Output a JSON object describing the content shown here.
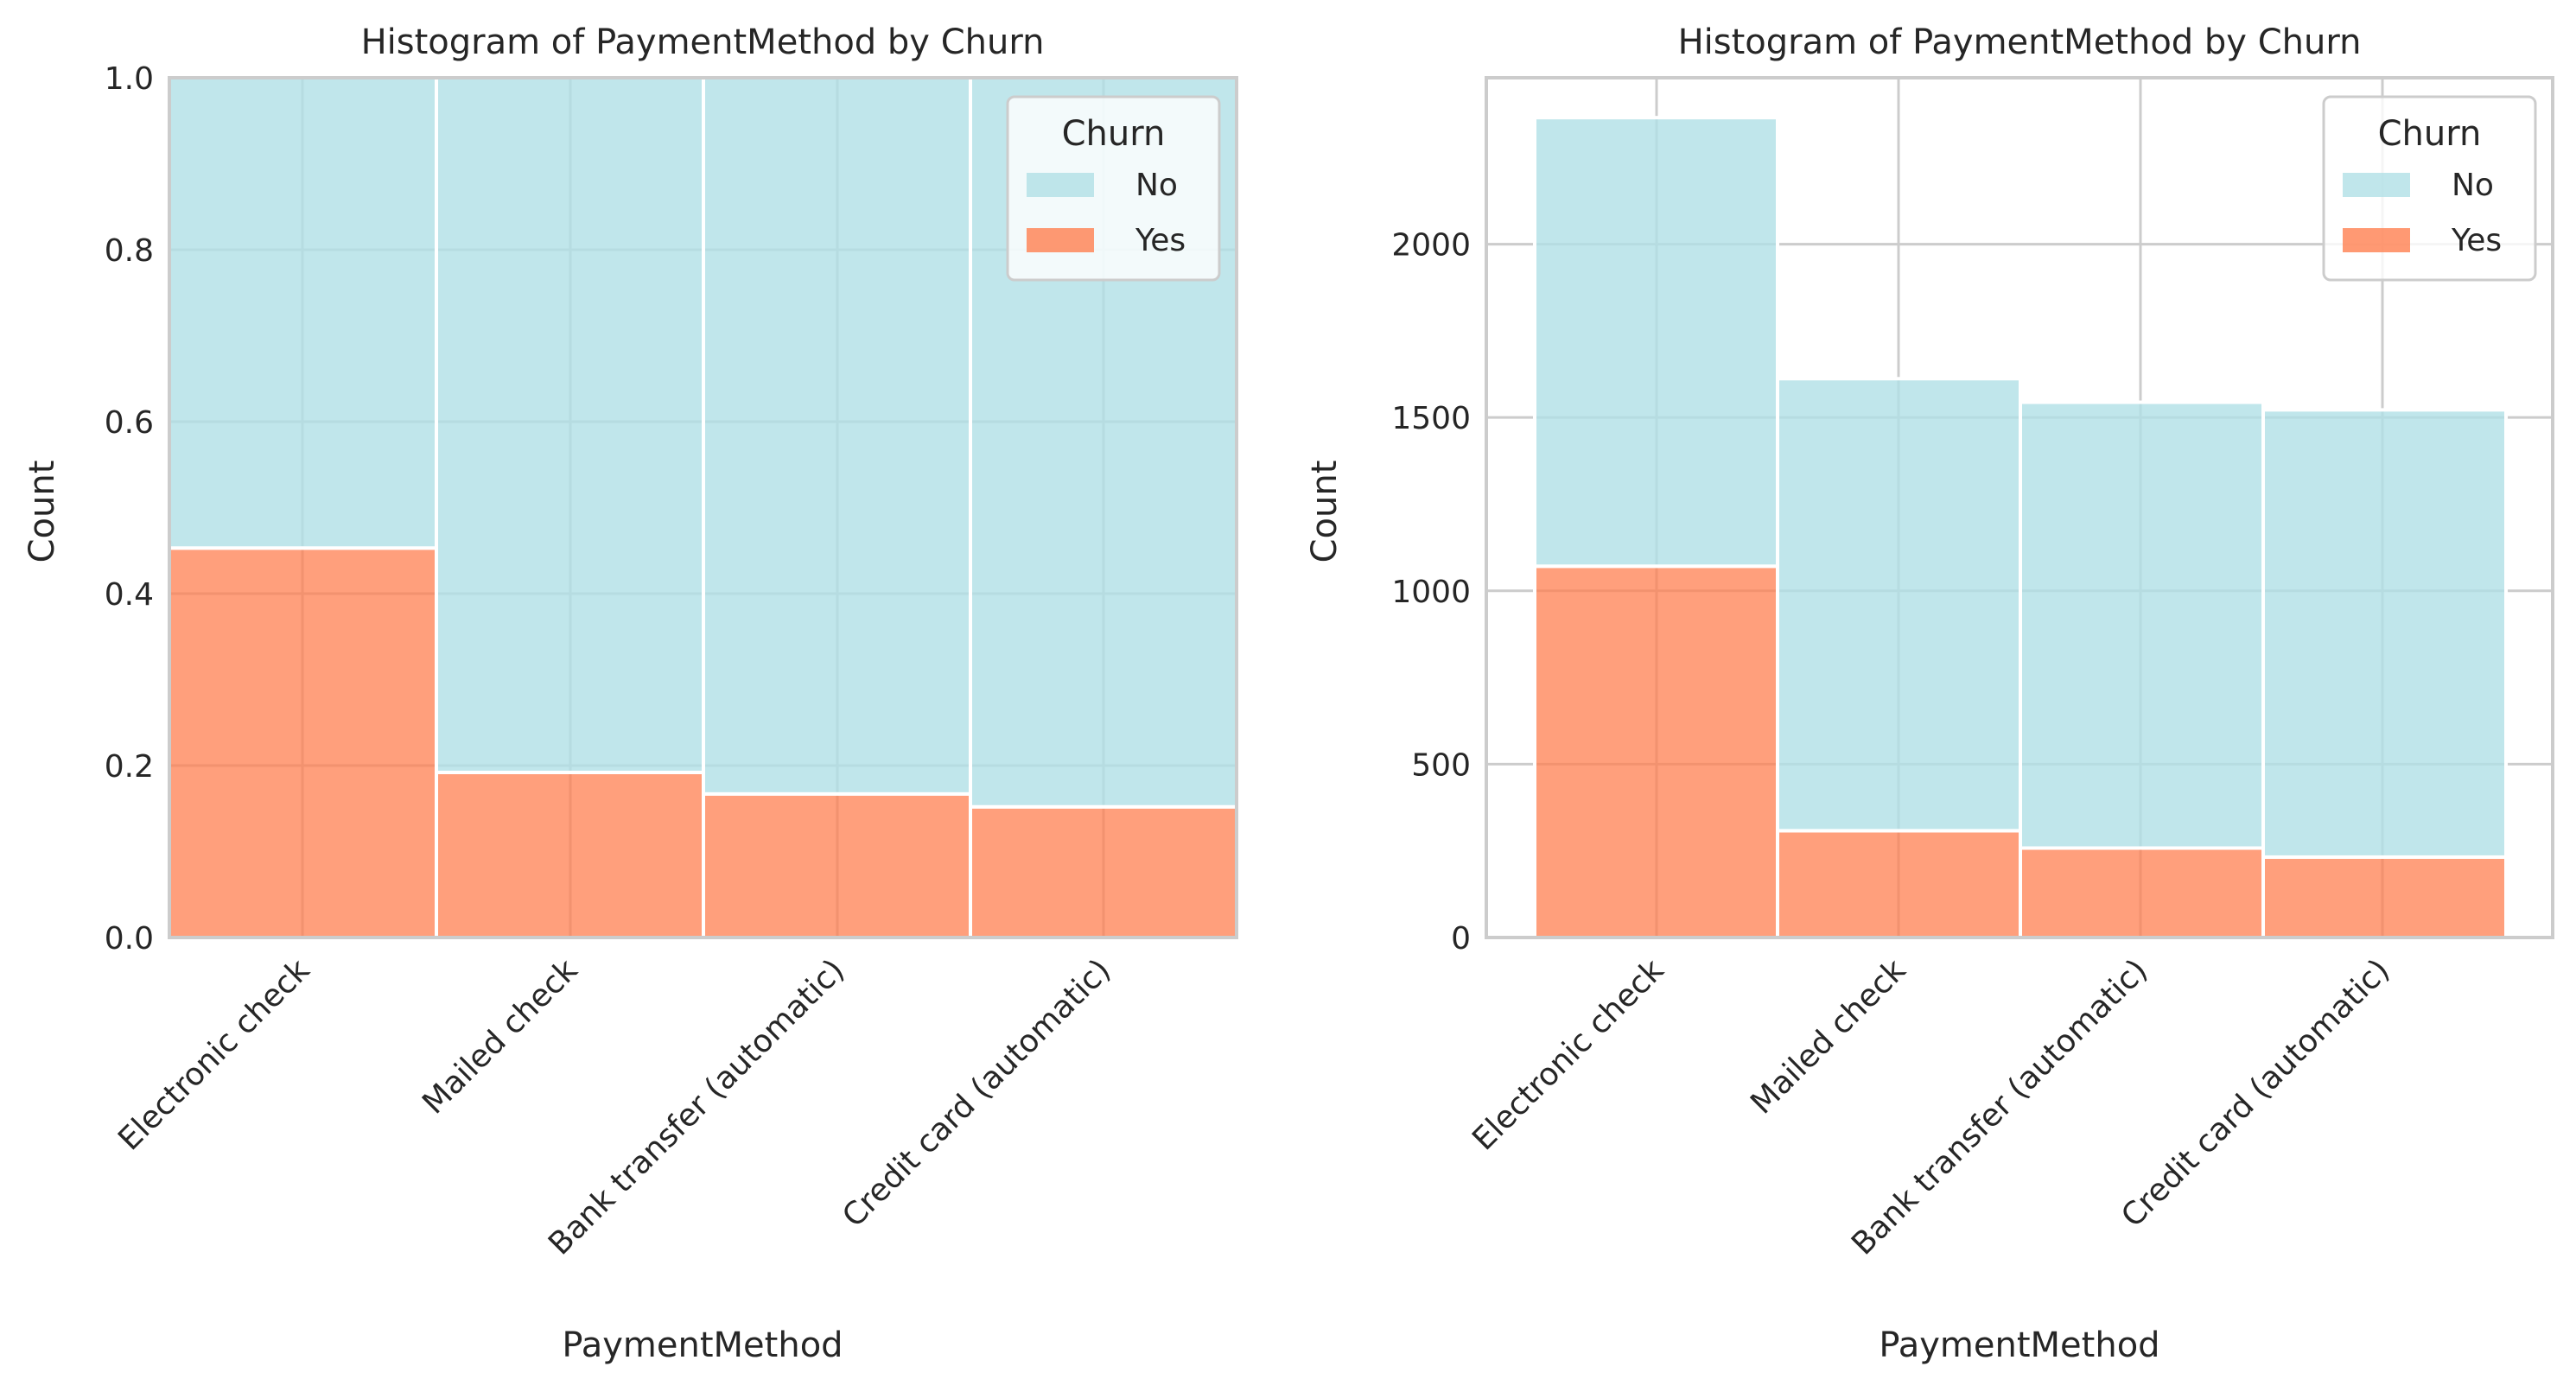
{
  "chart_data": [
    {
      "type": "bar",
      "stacked": true,
      "normalized": true,
      "title": "Histogram of PaymentMethod by Churn",
      "xlabel": "PaymentMethod",
      "ylabel": "Count",
      "ylim": [
        0,
        1.0
      ],
      "yticks": [
        "0.0",
        "0.2",
        "0.4",
        "0.6",
        "0.8",
        "1.0"
      ],
      "categories": [
        "Electronic check",
        "Mailed check",
        "Bank transfer (automatic)",
        "Credit card (automatic)"
      ],
      "series": [
        {
          "name": "No",
          "color": "#b0e0e6",
          "values": [
            0.547,
            0.808,
            0.833,
            0.848
          ]
        },
        {
          "name": "Yes",
          "color": "#ff7f50",
          "values": [
            0.453,
            0.192,
            0.167,
            0.152
          ]
        }
      ],
      "legend": {
        "title": "Churn",
        "placement": "top-right"
      },
      "grid": true
    },
    {
      "type": "bar",
      "stacked": true,
      "normalized": false,
      "title": "Histogram of PaymentMethod by Churn",
      "xlabel": "PaymentMethod",
      "ylabel": "Count",
      "ylim": [
        0,
        2480
      ],
      "yticks": [
        "0",
        "500",
        "1000",
        "1500",
        "2000"
      ],
      "categories": [
        "Electronic check",
        "Mailed check",
        "Bank transfer (automatic)",
        "Credit card (automatic)"
      ],
      "series": [
        {
          "name": "No",
          "color": "#b0e0e6",
          "values": [
            1294,
            1304,
            1286,
            1290
          ]
        },
        {
          "name": "Yes",
          "color": "#ff7f50",
          "values": [
            1071,
            308,
            258,
            232
          ]
        }
      ],
      "legend": {
        "title": "Churn",
        "placement": "top-right"
      },
      "grid": true
    }
  ]
}
